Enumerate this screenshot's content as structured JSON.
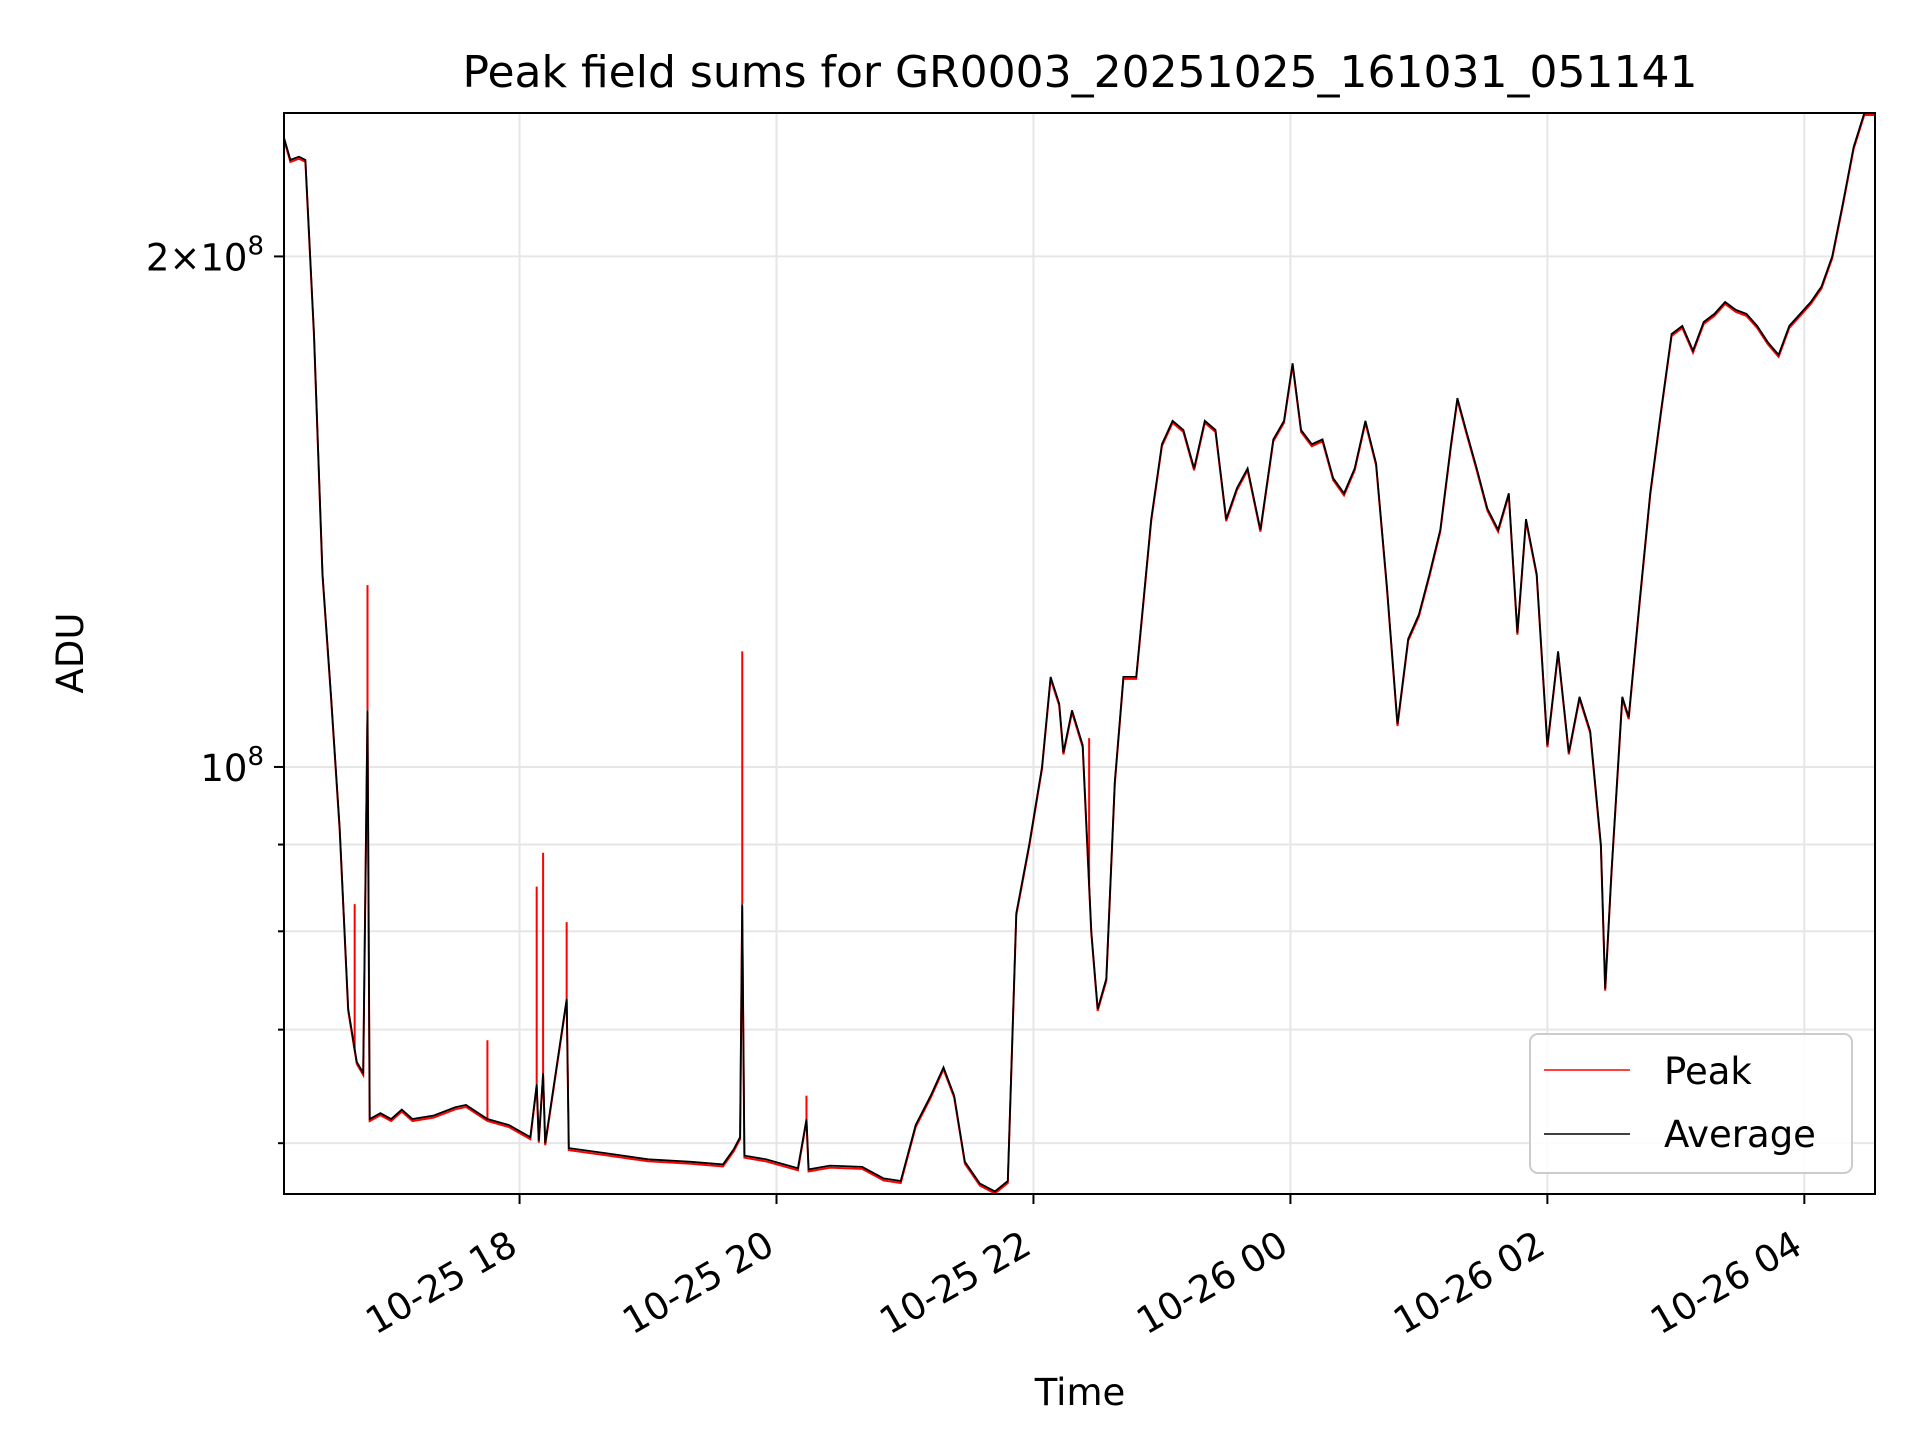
{
  "chart_data": {
    "type": "line",
    "title": "Peak field sums for GR0003_20251025_161031_051141",
    "xlabel": "Time",
    "ylabel": "ADU",
    "y_scale": "log",
    "x_tick_labels": [
      "10-25 18",
      "10-25 20",
      "10-25 22",
      "10-26 00",
      "10-26 02",
      "10-26 04"
    ],
    "x_tick_values": [
      "2025-10-25T18:00",
      "2025-10-25T20:00",
      "2025-10-25T22:00",
      "2025-10-26T00:00",
      "2025-10-26T02:00",
      "2025-10-26T04:00"
    ],
    "xlim": [
      "2025-10-25T16:10",
      "2025-10-26T04:33"
    ],
    "ylim": [
      56000000,
      243000000
    ],
    "y_major_ticks": [
      {
        "value": 100000000,
        "base": "10",
        "exp": "8",
        "label": "10^8"
      },
      {
        "value": 200000000,
        "coef": "2",
        "mult": "×",
        "base": "10",
        "exp": "8",
        "label": "2×10^8"
      }
    ],
    "y_minor_ticks": [
      60000000,
      70000000,
      80000000,
      90000000
    ],
    "grid": true,
    "legend_position": "lower-right",
    "series": [
      {
        "name": "Peak",
        "color": "#ff0000",
        "spikes": [
          {
            "x": "2025-10-25T16:43",
            "y": 83000000
          },
          {
            "x": "2025-10-25T16:49",
            "y": 128000000
          },
          {
            "x": "2025-10-25T17:45",
            "y": 69000000
          },
          {
            "x": "2025-10-25T18:08",
            "y": 85000000
          },
          {
            "x": "2025-10-25T18:11",
            "y": 89000000
          },
          {
            "x": "2025-10-25T18:22",
            "y": 81000000
          },
          {
            "x": "2025-10-25T19:44",
            "y": 117000000
          },
          {
            "x": "2025-10-25T20:14",
            "y": 64000000
          },
          {
            "x": "2025-10-25T22:26",
            "y": 104000000
          }
        ]
      },
      {
        "name": "Average",
        "color": "#000000",
        "points": [
          [
            "2025-10-25T16:10",
            235000000
          ],
          [
            "2025-10-25T16:13",
            228000000
          ],
          [
            "2025-10-25T16:17",
            229000000
          ],
          [
            "2025-10-25T16:20",
            228000000
          ],
          [
            "2025-10-25T16:24",
            180000000
          ],
          [
            "2025-10-25T16:28",
            130000000
          ],
          [
            "2025-10-25T16:32",
            110000000
          ],
          [
            "2025-10-25T16:36",
            92000000
          ],
          [
            "2025-10-25T16:40",
            72000000
          ],
          [
            "2025-10-25T16:44",
            67000000
          ],
          [
            "2025-10-25T16:47",
            66000000
          ],
          [
            "2025-10-25T16:49",
            108000000
          ],
          [
            "2025-10-25T16:50",
            62000000
          ],
          [
            "2025-10-25T16:55",
            62500000
          ],
          [
            "2025-10-25T17:00",
            62000000
          ],
          [
            "2025-10-25T17:05",
            62800000
          ],
          [
            "2025-10-25T17:10",
            62000000
          ],
          [
            "2025-10-25T17:20",
            62300000
          ],
          [
            "2025-10-25T17:30",
            63000000
          ],
          [
            "2025-10-25T17:35",
            63200000
          ],
          [
            "2025-10-25T17:45",
            62000000
          ],
          [
            "2025-10-25T17:55",
            61500000
          ],
          [
            "2025-10-25T18:05",
            60500000
          ],
          [
            "2025-10-25T18:08",
            65000000
          ],
          [
            "2025-10-25T18:09",
            60200000
          ],
          [
            "2025-10-25T18:11",
            66000000
          ],
          [
            "2025-10-25T18:12",
            60000000
          ],
          [
            "2025-10-25T18:22",
            73000000
          ],
          [
            "2025-10-25T18:23",
            59600000
          ],
          [
            "2025-10-25T18:40",
            59200000
          ],
          [
            "2025-10-25T19:00",
            58700000
          ],
          [
            "2025-10-25T19:20",
            58500000
          ],
          [
            "2025-10-25T19:35",
            58300000
          ],
          [
            "2025-10-25T19:40",
            59500000
          ],
          [
            "2025-10-25T19:43",
            60500000
          ],
          [
            "2025-10-25T19:44",
            83000000
          ],
          [
            "2025-10-25T19:45",
            59000000
          ],
          [
            "2025-10-25T19:55",
            58700000
          ],
          [
            "2025-10-25T20:10",
            58000000
          ],
          [
            "2025-10-25T20:14",
            62000000
          ],
          [
            "2025-10-25T20:15",
            57900000
          ],
          [
            "2025-10-25T20:25",
            58200000
          ],
          [
            "2025-10-25T20:40",
            58100000
          ],
          [
            "2025-10-25T20:50",
            57200000
          ],
          [
            "2025-10-25T20:58",
            57000000
          ],
          [
            "2025-10-25T21:05",
            61500000
          ],
          [
            "2025-10-25T21:12",
            64000000
          ],
          [
            "2025-10-25T21:18",
            66500000
          ],
          [
            "2025-10-25T21:23",
            64000000
          ],
          [
            "2025-10-25T21:28",
            58500000
          ],
          [
            "2025-10-25T21:35",
            56800000
          ],
          [
            "2025-10-25T21:42",
            56200000
          ],
          [
            "2025-10-25T21:48",
            57000000
          ],
          [
            "2025-10-25T21:52",
            82000000
          ],
          [
            "2025-10-25T21:58",
            90000000
          ],
          [
            "2025-10-25T22:04",
            100000000
          ],
          [
            "2025-10-25T22:08",
            113000000
          ],
          [
            "2025-10-25T22:12",
            109000000
          ],
          [
            "2025-10-25T22:14",
            102000000
          ],
          [
            "2025-10-25T22:18",
            108000000
          ],
          [
            "2025-10-25T22:23",
            103000000
          ],
          [
            "2025-10-25T22:27",
            80000000
          ],
          [
            "2025-10-25T22:30",
            72000000
          ],
          [
            "2025-10-25T22:34",
            75000000
          ],
          [
            "2025-10-25T22:38",
            98000000
          ],
          [
            "2025-10-25T22:42",
            113000000
          ],
          [
            "2025-10-25T22:48",
            113000000
          ],
          [
            "2025-10-25T22:55",
            140000000
          ],
          [
            "2025-10-25T23:00",
            155000000
          ],
          [
            "2025-10-25T23:05",
            160000000
          ],
          [
            "2025-10-25T23:10",
            158000000
          ],
          [
            "2025-10-25T23:15",
            150000000
          ],
          [
            "2025-10-25T23:20",
            160000000
          ],
          [
            "2025-10-25T23:25",
            158000000
          ],
          [
            "2025-10-25T23:30",
            140000000
          ],
          [
            "2025-10-25T23:35",
            146000000
          ],
          [
            "2025-10-25T23:40",
            150000000
          ],
          [
            "2025-10-25T23:46",
            138000000
          ],
          [
            "2025-10-25T23:52",
            156000000
          ],
          [
            "2025-10-25T23:57",
            160000000
          ],
          [
            "2025-10-26T00:01",
            173000000
          ],
          [
            "2025-10-26T00:05",
            158000000
          ],
          [
            "2025-10-26T00:10",
            155000000
          ],
          [
            "2025-10-26T00:15",
            156000000
          ],
          [
            "2025-10-26T00:20",
            148000000
          ],
          [
            "2025-10-26T00:25",
            145000000
          ],
          [
            "2025-10-26T00:30",
            150000000
          ],
          [
            "2025-10-26T00:35",
            160000000
          ],
          [
            "2025-10-26T00:40",
            151000000
          ],
          [
            "2025-10-26T00:45",
            128000000
          ],
          [
            "2025-10-26T00:50",
            106000000
          ],
          [
            "2025-10-26T00:55",
            119000000
          ],
          [
            "2025-10-26T01:00",
            123000000
          ],
          [
            "2025-10-26T01:05",
            130000000
          ],
          [
            "2025-10-26T01:10",
            138000000
          ],
          [
            "2025-10-26T01:15",
            155000000
          ],
          [
            "2025-10-26T01:18",
            165000000
          ],
          [
            "2025-10-26T01:22",
            158000000
          ],
          [
            "2025-10-26T01:27",
            150000000
          ],
          [
            "2025-10-26T01:32",
            142000000
          ],
          [
            "2025-10-26T01:37",
            138000000
          ],
          [
            "2025-10-26T01:42",
            145000000
          ],
          [
            "2025-10-26T01:46",
            120000000
          ],
          [
            "2025-10-26T01:50",
            140000000
          ],
          [
            "2025-10-26T01:55",
            130000000
          ],
          [
            "2025-10-26T02:00",
            103000000
          ],
          [
            "2025-10-26T02:05",
            117000000
          ],
          [
            "2025-10-26T02:10",
            102000000
          ],
          [
            "2025-10-26T02:15",
            110000000
          ],
          [
            "2025-10-26T02:20",
            105000000
          ],
          [
            "2025-10-26T02:25",
            90000000
          ],
          [
            "2025-10-26T02:27",
            74000000
          ],
          [
            "2025-10-26T02:30",
            87000000
          ],
          [
            "2025-10-26T02:35",
            110000000
          ],
          [
            "2025-10-26T02:38",
            107000000
          ],
          [
            "2025-10-26T02:43",
            125000000
          ],
          [
            "2025-10-26T02:48",
            145000000
          ],
          [
            "2025-10-26T02:53",
            162000000
          ],
          [
            "2025-10-26T02:58",
            180000000
          ],
          [
            "2025-10-26T03:03",
            182000000
          ],
          [
            "2025-10-26T03:08",
            176000000
          ],
          [
            "2025-10-26T03:13",
            183000000
          ],
          [
            "2025-10-26T03:18",
            185000000
          ],
          [
            "2025-10-26T03:23",
            188000000
          ],
          [
            "2025-10-26T03:28",
            186000000
          ],
          [
            "2025-10-26T03:33",
            185000000
          ],
          [
            "2025-10-26T03:38",
            182000000
          ],
          [
            "2025-10-26T03:43",
            178000000
          ],
          [
            "2025-10-26T03:48",
            175000000
          ],
          [
            "2025-10-26T03:53",
            182000000
          ],
          [
            "2025-10-26T03:58",
            185000000
          ],
          [
            "2025-10-26T04:03",
            188000000
          ],
          [
            "2025-10-26T04:08",
            192000000
          ],
          [
            "2025-10-26T04:13",
            200000000
          ],
          [
            "2025-10-26T04:18",
            215000000
          ],
          [
            "2025-10-26T04:23",
            232000000
          ],
          [
            "2025-10-26T04:28",
            243000000
          ],
          [
            "2025-10-26T04:33",
            243000000
          ]
        ]
      }
    ]
  }
}
